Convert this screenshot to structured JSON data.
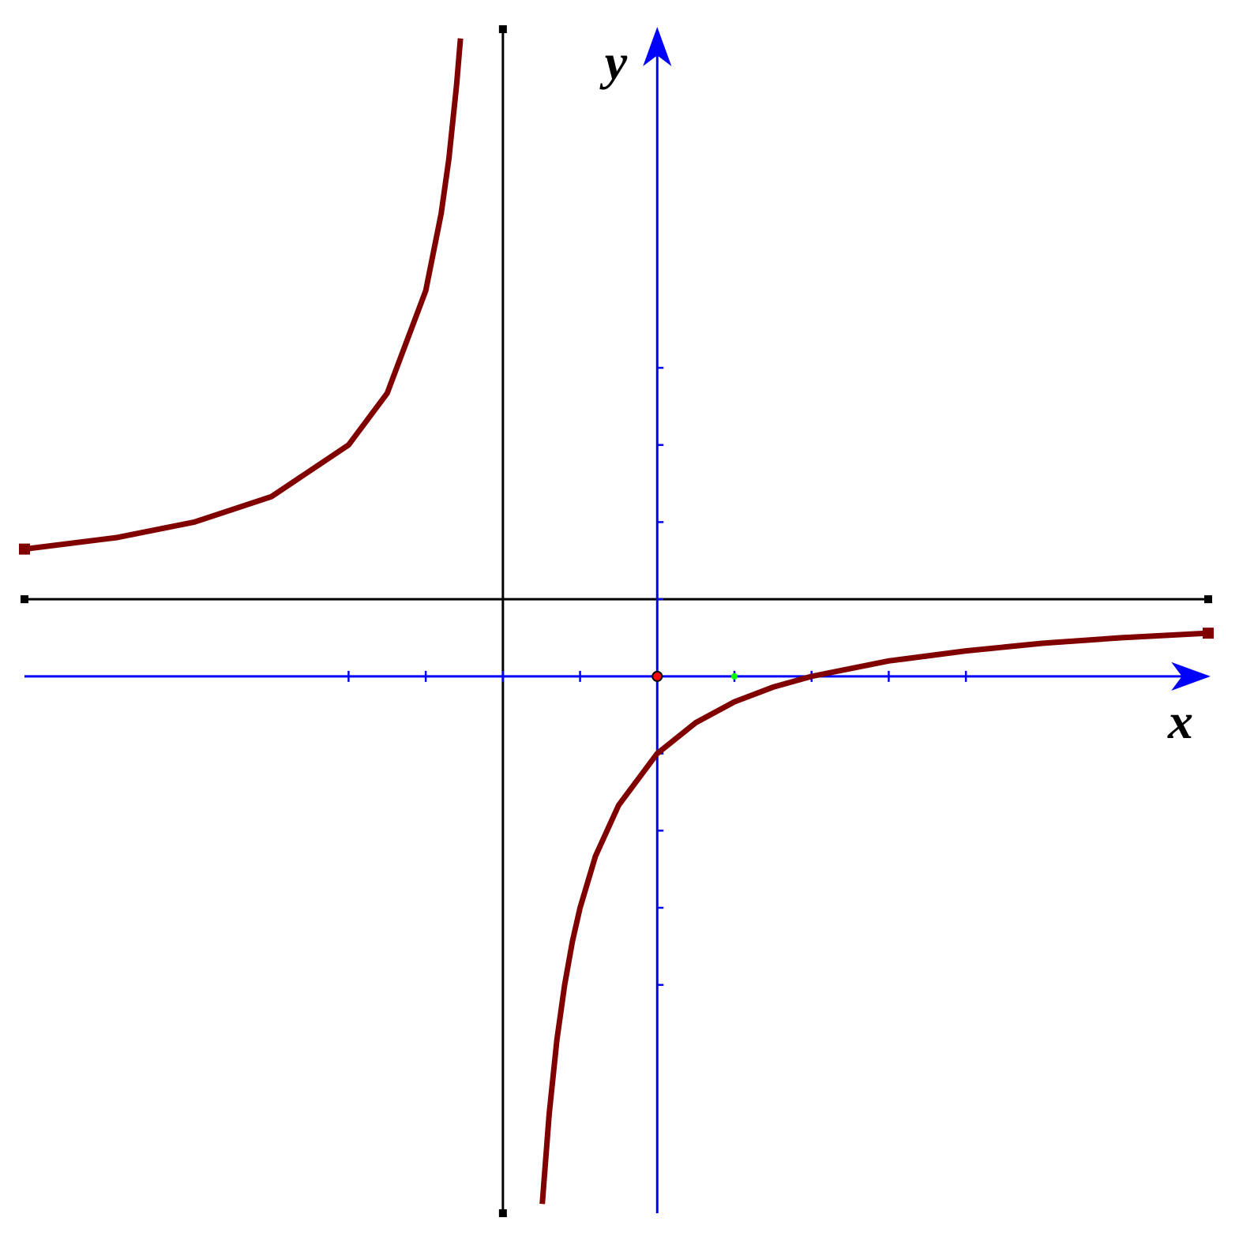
{
  "chart_data": {
    "type": "line",
    "x_label": "x",
    "y_label": "y",
    "xlim": [
      -8.2,
      7.14
    ],
    "ylim": [
      -6.96,
      8.39
    ],
    "xticks": [
      -4,
      -3,
      -2,
      -1,
      1,
      2,
      3,
      4
    ],
    "yticks": [
      -4,
      -3,
      -2,
      -1,
      1,
      2,
      3,
      4
    ],
    "axis_color": "#0000ff",
    "asymptote_color": "#000000",
    "asymptotes": {
      "x": -2,
      "y": 1
    },
    "points": [
      {
        "x": 0,
        "y": 0,
        "color": "#ff0000"
      },
      {
        "x": 1,
        "y": 0,
        "color": "#00ff00"
      }
    ],
    "series": [
      {
        "color": "#800000",
        "x": [
          -8.2,
          -7,
          -6,
          -5,
          -4,
          -3.5,
          -3,
          -2.8,
          -2.7,
          -2.6,
          -2.55,
          null,
          -1.49,
          -1.4,
          -1.3,
          -1.2,
          -1.1,
          -1,
          -0.8,
          -0.5,
          0,
          0.5,
          1,
          1.5,
          2,
          3,
          4,
          5,
          6,
          7.14
        ],
        "values": [
          1.65,
          1.8,
          2,
          2.33,
          3,
          3.67,
          5,
          6,
          6.71,
          7.67,
          8.27,
          null,
          -6.84,
          -5.67,
          -4.71,
          -4,
          -3.44,
          -3,
          -2.33,
          -1.67,
          -1,
          -0.6,
          -0.33,
          -0.14,
          0,
          0.2,
          0.33,
          0.43,
          0.5,
          0.56
        ]
      }
    ]
  }
}
